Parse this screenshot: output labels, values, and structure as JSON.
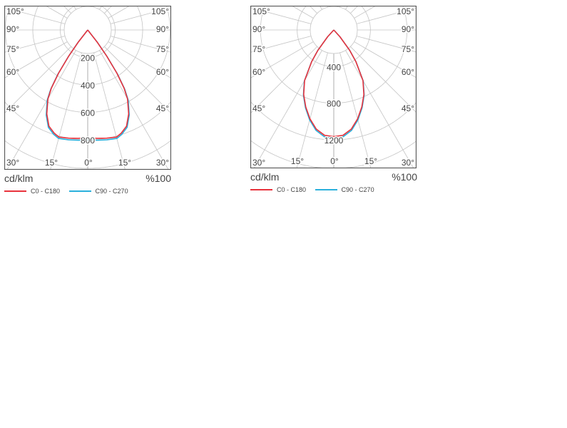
{
  "chart_data": [
    {
      "type": "polar",
      "unit_label": "cd/klm",
      "scale_label": "%100",
      "radial_ticks": [
        200,
        400,
        600,
        800
      ],
      "radial_max": 800,
      "angle_labels_left": [
        "105°",
        "90°",
        "75°",
        "60°",
        "45°",
        "30°"
      ],
      "angle_labels_right": [
        "105°",
        "90°",
        "75°",
        "60°",
        "45°",
        "30°"
      ],
      "angle_labels_bottom": [
        "15°",
        "0°",
        "15°"
      ],
      "angles_deg": [
        0,
        5,
        10,
        15,
        18,
        22,
        26,
        30,
        32,
        34,
        36,
        38,
        40
      ],
      "series": [
        {
          "name": "C0 - C180",
          "color": "#e8323c",
          "values": [
            785,
            792,
            800,
            808,
            790,
            755,
            680,
            580,
            500,
            380,
            235,
            110,
            0
          ]
        },
        {
          "name": "C90 - C270",
          "color": "#2ab0dc",
          "values": [
            800,
            806,
            812,
            818,
            800,
            765,
            690,
            590,
            508,
            388,
            240,
            112,
            0
          ]
        }
      ]
    },
    {
      "type": "polar",
      "unit_label": "cd/klm",
      "scale_label": "%100",
      "radial_ticks": [
        400,
        800,
        1200
      ],
      "radial_max": 1200,
      "angle_labels_left": [
        "105°",
        "90°",
        "75°",
        "60°",
        "45°",
        "30°"
      ],
      "angle_labels_right": [
        "105°",
        "90°",
        "75°",
        "60°",
        "45°",
        "30°"
      ],
      "angle_labels_bottom": [
        "15°",
        "0°",
        "15°"
      ],
      "angles_deg": [
        0,
        5,
        10,
        15,
        20,
        25,
        30,
        35,
        38,
        42,
        45
      ],
      "series": [
        {
          "name": "C0 - C180",
          "color": "#e8323c",
          "values": [
            1165,
            1155,
            1100,
            1005,
            895,
            778,
            638,
            420,
            280,
            100,
            0
          ]
        },
        {
          "name": "C90 - C270",
          "color": "#2ab0dc",
          "values": [
            1185,
            1172,
            1115,
            1018,
            905,
            786,
            644,
            424,
            283,
            101,
            0
          ]
        }
      ]
    }
  ]
}
